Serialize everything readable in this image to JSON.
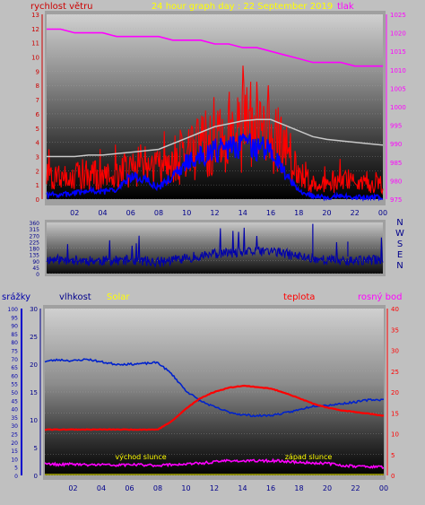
{
  "colors": {
    "background": "#c0c0c0",
    "wind": "#ff0000",
    "wind_low": "#0000ff",
    "pressure": "#ff00ff",
    "wind_gray": "#c8c8c8",
    "direction": "#0000aa",
    "rain": "#0000cc",
    "humidity": "#00008b",
    "solar": "#ffff00",
    "temperature": "#ff0000",
    "dewpoint": "#ff00ff"
  },
  "chart_data": [
    {
      "type": "line",
      "title": "24 hour graph day : 22 September 2019",
      "x_ticks": [
        "02",
        "04",
        "06",
        "08",
        "10",
        "12",
        "14",
        "16",
        "18",
        "20",
        "22",
        "00"
      ],
      "left_axis": {
        "label": "rychlost větru",
        "ylim": [
          0,
          13
        ],
        "ticks": [
          0,
          1,
          2,
          3,
          4,
          5,
          6,
          7,
          8,
          9,
          10,
          11,
          12,
          13
        ]
      },
      "right_axis": {
        "label": "tlak",
        "ylim": [
          975,
          1025
        ],
        "ticks": [
          975,
          980,
          985,
          990,
          995,
          1000,
          1005,
          1010,
          1015,
          1020,
          1025
        ]
      },
      "series": [
        {
          "name": "rychlost větru",
          "hours": [
            0,
            1,
            2,
            3,
            4,
            5,
            6,
            7,
            8,
            9,
            10,
            11,
            12,
            13,
            14,
            15,
            16,
            17,
            18,
            19,
            20,
            21,
            22,
            23,
            24
          ],
          "values": [
            1.6,
            1.4,
            1.6,
            1.8,
            1.6,
            1.8,
            2.2,
            2.4,
            2.0,
            2.6,
            3.2,
            3.6,
            4.4,
            4.8,
            5.2,
            5.2,
            5.4,
            3.8,
            1.6,
            1.2,
            1.0,
            1.4,
            1.2,
            1.1,
            1.0
          ]
        },
        {
          "name": "",
          "hours": [
            0,
            1,
            2,
            3,
            4,
            5,
            6,
            7,
            8,
            9,
            10,
            11,
            12,
            13,
            14,
            15,
            16,
            17,
            18,
            19,
            20,
            21,
            22,
            23,
            24
          ],
          "values": [
            0.3,
            0.3,
            0.4,
            0.6,
            0.5,
            0.7,
            1.6,
            1.4,
            0.8,
            1.6,
            2.6,
            3.0,
            3.4,
            3.6,
            3.8,
            3.6,
            3.4,
            1.8,
            0.6,
            0.2,
            0.1,
            0.2,
            0.1,
            0.1,
            0.1
          ]
        },
        {
          "name": "",
          "hours": [
            0,
            1,
            2,
            3,
            4,
            5,
            6,
            7,
            8,
            9,
            10,
            11,
            12,
            13,
            14,
            15,
            16,
            17,
            18,
            19,
            20,
            21,
            22,
            23,
            24
          ],
          "values": [
            3.0,
            3.0,
            3.0,
            3.1,
            3.1,
            3.2,
            3.3,
            3.4,
            3.5,
            3.9,
            4.3,
            4.7,
            5.1,
            5.3,
            5.5,
            5.6,
            5.6,
            5.2,
            4.8,
            4.4,
            4.2,
            4.1,
            4.0,
            3.9,
            3.8
          ]
        },
        {
          "name": "tlak",
          "axis": "right",
          "hours": [
            0,
            1,
            2,
            3,
            4,
            5,
            6,
            7,
            8,
            9,
            10,
            11,
            12,
            13,
            14,
            15,
            16,
            17,
            18,
            19,
            20,
            21,
            22,
            23,
            24
          ],
          "values": [
            1021,
            1021,
            1020,
            1020,
            1020,
            1019,
            1019,
            1019,
            1019,
            1018,
            1018,
            1018,
            1017,
            1017,
            1016,
            1016,
            1015,
            1014,
            1013,
            1012,
            1012,
            1012,
            1011,
            1011,
            1011
          ]
        }
      ]
    },
    {
      "type": "line",
      "x_ticks": [
        "02",
        "04",
        "06",
        "08",
        "10",
        "12",
        "14",
        "16",
        "18",
        "20",
        "22",
        "00"
      ],
      "left_axis": {
        "ylim": [
          0,
          360
        ],
        "ticks": [
          0,
          45,
          90,
          135,
          180,
          225,
          270,
          315,
          360
        ]
      },
      "right_axis": {
        "labels": [
          "N",
          "W",
          "S",
          "E",
          "N"
        ]
      },
      "series": [
        {
          "name": "",
          "hours": [
            0,
            2,
            4,
            6,
            8,
            10,
            12,
            14,
            16,
            18,
            20,
            22,
            24
          ],
          "values": [
            100,
            95,
            90,
            95,
            80,
            110,
            140,
            150,
            160,
            120,
            95,
            90,
            100
          ]
        }
      ]
    },
    {
      "type": "line",
      "x_ticks": [
        "02",
        "04",
        "06",
        "08",
        "10",
        "12",
        "14",
        "16",
        "18",
        "20",
        "22",
        "00"
      ],
      "axes": [
        {
          "label": "srážky",
          "ylim": [
            0,
            100
          ],
          "ticks": [
            0,
            5,
            10,
            15,
            20,
            25,
            30,
            35,
            40,
            45,
            50,
            55,
            60,
            65,
            70,
            75,
            80,
            85,
            90,
            95,
            100
          ]
        },
        {
          "label": "vlhkost",
          "ylim": [
            0,
            30
          ],
          "ticks": [
            0,
            5,
            10,
            15,
            20,
            25,
            30
          ]
        },
        {
          "label": "Solar"
        },
        {
          "label": "teplota",
          "ylim": [
            0,
            40
          ],
          "ticks": [
            0,
            5,
            10,
            15,
            20,
            25,
            30,
            35,
            40
          ]
        },
        {
          "label": "rosný bod"
        }
      ],
      "annotations": [
        "východ slunce",
        "západ slunce"
      ],
      "series": [
        {
          "name": "vlhkost",
          "hours": [
            0,
            1,
            2,
            3,
            4,
            5,
            6,
            7,
            8,
            9,
            10,
            11,
            12,
            13,
            14,
            15,
            16,
            17,
            18,
            19,
            20,
            21,
            22,
            23,
            24
          ],
          "values": [
            20.5,
            20.8,
            20.6,
            20.9,
            20.4,
            20.0,
            20.0,
            20.1,
            20.3,
            18.2,
            15.2,
            13.4,
            12.3,
            11.4,
            10.9,
            10.7,
            10.8,
            11.2,
            11.8,
            12.5,
            12.6,
            12.9,
            13.2,
            13.6,
            13.6
          ]
        },
        {
          "name": "teplota",
          "hours": [
            0,
            1,
            2,
            3,
            4,
            5,
            6,
            7,
            8,
            9,
            10,
            11,
            12,
            13,
            14,
            15,
            16,
            17,
            18,
            19,
            20,
            21,
            22,
            23,
            24
          ],
          "values": [
            11,
            11,
            11,
            11,
            11,
            11,
            11,
            11,
            11,
            13,
            16,
            18.5,
            20,
            21,
            21.5,
            21.2,
            20.8,
            19.8,
            18.5,
            17.2,
            16.2,
            15.6,
            15.2,
            14.8,
            14.3
          ]
        },
        {
          "name": "rosný bod",
          "hours": [
            0,
            1,
            2,
            3,
            4,
            5,
            6,
            7,
            8,
            9,
            10,
            11,
            12,
            13,
            14,
            15,
            16,
            17,
            18,
            19,
            20,
            21,
            22,
            23,
            24
          ],
          "values": [
            2.8,
            2.6,
            2.7,
            2.5,
            2.6,
            2.4,
            2.6,
            2.5,
            2.4,
            2.6,
            2.7,
            2.9,
            3.2,
            3.6,
            3.4,
            3.5,
            3.5,
            3.4,
            3.1,
            3.0,
            2.9,
            2.4,
            2.2,
            2.1,
            2.0
          ]
        }
      ]
    }
  ]
}
